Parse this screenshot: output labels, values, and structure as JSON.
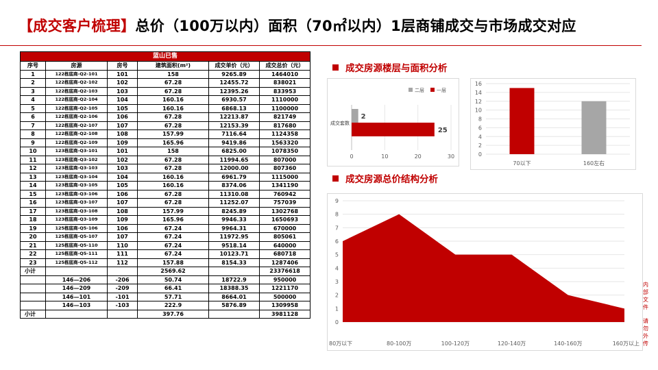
{
  "title": {
    "bracket": "【成交客户梳理】",
    "rest": "总价（100万以内）面积（70㎡以内）1层商铺成交与市场成交对应"
  },
  "table": {
    "banner": "蓝山已售",
    "headers": [
      "序号",
      "房源",
      "房号",
      "建筑面积(m²)",
      "成交单价（元）",
      "成交总价（元）"
    ],
    "rows": [
      [
        "1",
        "122栋底商-Q2-101",
        "101",
        "158",
        "9265.89",
        "1464010"
      ],
      [
        "2",
        "122栋底商-Q2-102",
        "102",
        "67.28",
        "12455.72",
        "838021"
      ],
      [
        "3",
        "122栋底商-Q2-103",
        "103",
        "67.28",
        "12395.26",
        "833953"
      ],
      [
        "4",
        "122栋底商-Q2-104",
        "104",
        "160.16",
        "6930.57",
        "1110000"
      ],
      [
        "5",
        "122栋底商-Q2-105",
        "105",
        "160.16",
        "6868.13",
        "1100000"
      ],
      [
        "6",
        "122栋底商-Q2-106",
        "106",
        "67.28",
        "12213.87",
        "821749"
      ],
      [
        "7",
        "122栋底商-Q2-107",
        "107",
        "67.28",
        "12153.39",
        "817680"
      ],
      [
        "8",
        "122栋底商-Q2-108",
        "108",
        "157.99",
        "7116.64",
        "1124358"
      ],
      [
        "9",
        "122栋底商-Q2-109",
        "109",
        "165.96",
        "9419.86",
        "1563320"
      ],
      [
        "10",
        "123栋底商-Q3-101",
        "101",
        "158",
        "6825.00",
        "1078350"
      ],
      [
        "11",
        "123栋底商-Q3-102",
        "102",
        "67.28",
        "11994.65",
        "807000"
      ],
      [
        "12",
        "123栋底商-Q3-103",
        "103",
        "67.28",
        "12000.00",
        "807360"
      ],
      [
        "13",
        "123栋底商-Q3-104",
        "104",
        "160.16",
        "6961.79",
        "1115000"
      ],
      [
        "14",
        "123栋底商-Q3-105",
        "105",
        "160.16",
        "8374.06",
        "1341190"
      ],
      [
        "15",
        "123栋底商-Q3-106",
        "106",
        "67.28",
        "11310.08",
        "760942"
      ],
      [
        "16",
        "123栋底商-Q3-107",
        "107",
        "67.28",
        "11252.07",
        "757039"
      ],
      [
        "17",
        "123栋底商-Q3-108",
        "108",
        "157.99",
        "8245.89",
        "1302768"
      ],
      [
        "18",
        "123栋底商-Q3-109",
        "109",
        "165.96",
        "9946.33",
        "1650693"
      ],
      [
        "19",
        "125栋底商-Q5-106",
        "106",
        "67.24",
        "9964.31",
        "670000"
      ],
      [
        "20",
        "125栋底商-Q5-107",
        "107",
        "67.24",
        "11972.95",
        "805061"
      ],
      [
        "21",
        "125栋底商-Q5-110",
        "110",
        "67.24",
        "9518.14",
        "640000"
      ],
      [
        "22",
        "125栋底商-Q5-111",
        "111",
        "67.24",
        "10123.71",
        "680718"
      ],
      [
        "23",
        "125栋底商-Q5-112",
        "112",
        "157.88",
        "8154.33",
        "1287406"
      ]
    ],
    "subtotal1": {
      "label": "小计",
      "area": "2569.62",
      "total": "23376618"
    },
    "extra_rows": [
      [
        "146—206",
        "-206",
        "50.74",
        "18722.9",
        "950000"
      ],
      [
        "146—209",
        "-209",
        "66.41",
        "18388.35",
        "1221170"
      ],
      [
        "146—101",
        "-101",
        "57.71",
        "8664.01",
        "500000"
      ],
      [
        "146—103",
        "-103",
        "222.9",
        "5876.89",
        "1309958"
      ]
    ],
    "subtotal2": {
      "label": "小计",
      "area": "397.76",
      "total": "3981128"
    }
  },
  "section1": {
    "title": "成交房源楼层与面积分析"
  },
  "section2": {
    "title": "成交房源总价结构分析"
  },
  "side_text": {
    "top": "内部文件",
    "bottom": "请勿外传"
  },
  "colors": {
    "accent": "#c00000",
    "gray": "#a6a6a6",
    "grid": "#d9d9d9"
  },
  "chart_data": [
    {
      "type": "bar",
      "orientation": "horizontal",
      "categories": [
        "成交套数"
      ],
      "series": [
        {
          "name": "一层",
          "values": [
            25
          ],
          "color": "#c00000"
        },
        {
          "name": "二层",
          "values": [
            2
          ],
          "color": "#a6a6a6"
        }
      ],
      "data_labels": [
        "25",
        "2"
      ],
      "xlim": [
        0,
        30
      ],
      "xticks": [
        "0",
        "10",
        "20",
        "30"
      ],
      "legend": "top-center"
    },
    {
      "type": "bar",
      "categories": [
        "70以下",
        "160左右"
      ],
      "values": [
        15,
        12
      ],
      "colors": [
        "#c00000",
        "#a6a6a6"
      ],
      "ylim": [
        0,
        16
      ],
      "yticks": [
        "0",
        "2",
        "4",
        "6",
        "8",
        "10",
        "12",
        "14",
        "16"
      ],
      "grid": true
    },
    {
      "type": "area",
      "categories": [
        "80万以下",
        "80-100万",
        "100-120万",
        "120-140万",
        "140-160万",
        "160万以上"
      ],
      "values": [
        6,
        8,
        5,
        5,
        2,
        1
      ],
      "ylim": [
        0,
        9
      ],
      "yticks": [
        "0",
        "1",
        "2",
        "3",
        "4",
        "5",
        "6",
        "7",
        "8",
        "9"
      ],
      "grid": true,
      "color": "#c00000"
    }
  ]
}
